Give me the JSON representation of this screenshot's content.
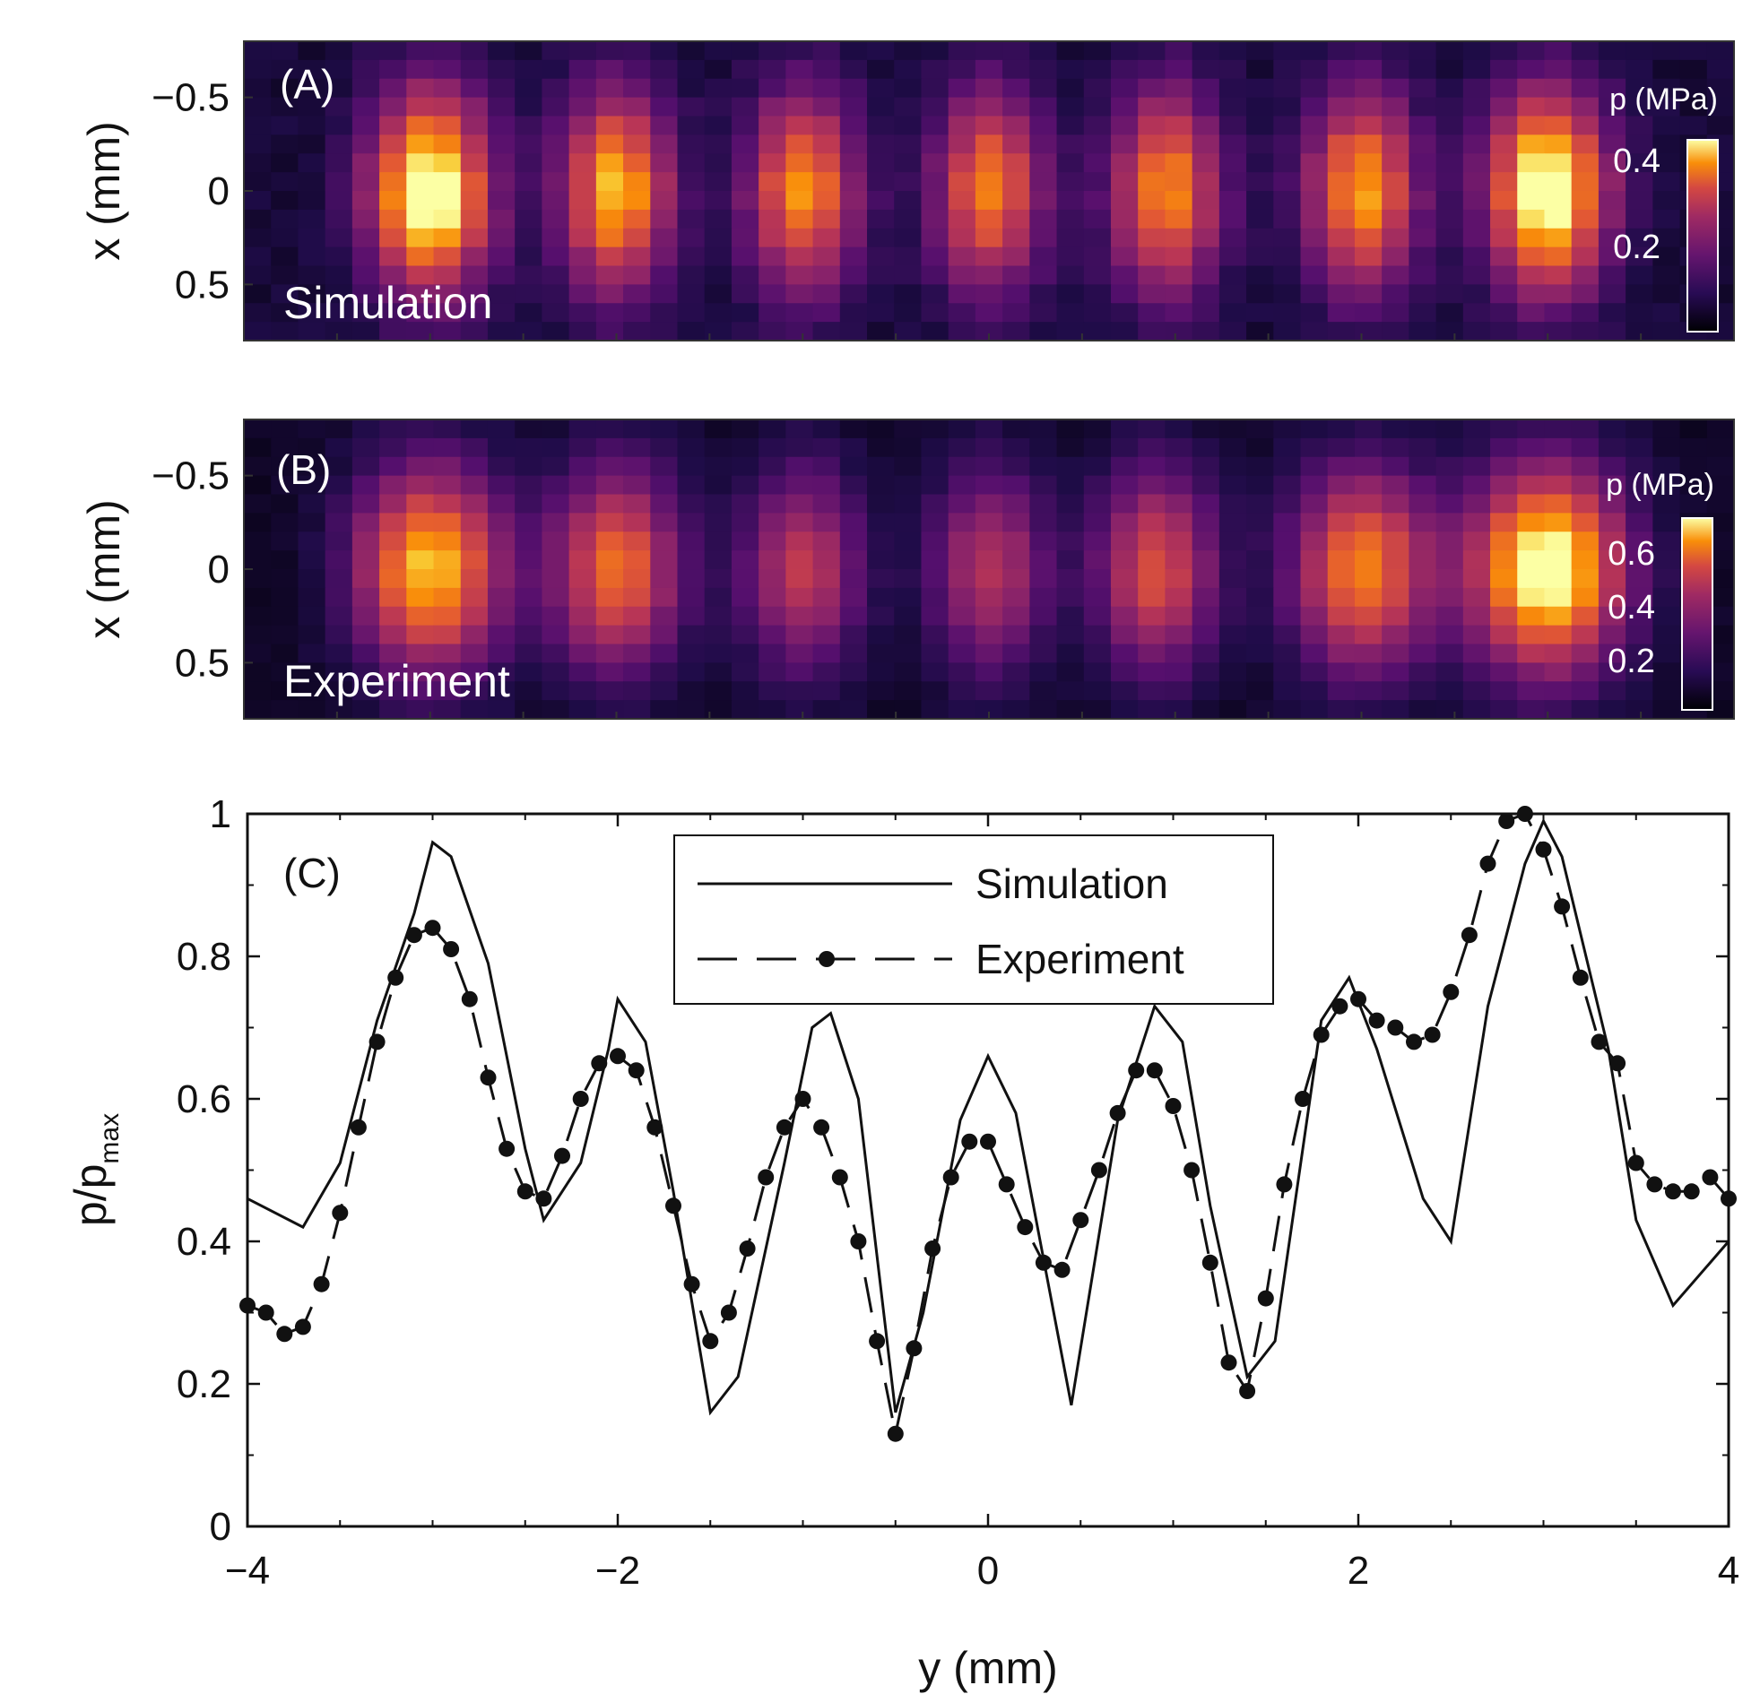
{
  "chart_data": [
    {
      "type": "heatmap",
      "panel_label": "(A)",
      "overlay_label": "Simulation",
      "ylabel": "x (mm)",
      "y_ticks": [
        "−0.5",
        "0",
        "0.5"
      ],
      "xlim": [
        -4,
        4
      ],
      "ylim": [
        -0.8,
        0.8
      ],
      "colorbar": {
        "title": "p (MPa)",
        "ticks": [
          "0.4",
          "0.2"
        ],
        "range": [
          0,
          0.45
        ]
      },
      "peaks": [
        {
          "y": -3.0,
          "amp": 0.44,
          "width": 0.33
        },
        {
          "y": -2.0,
          "amp": 0.36,
          "width": 0.3
        },
        {
          "y": -1.0,
          "amp": 0.33,
          "width": 0.3
        },
        {
          "y": 0.0,
          "amp": 0.31,
          "width": 0.3
        },
        {
          "y": 0.95,
          "amp": 0.33,
          "width": 0.3
        },
        {
          "y": 2.0,
          "amp": 0.34,
          "width": 0.3
        },
        {
          "y": 3.0,
          "amp": 0.44,
          "width": 0.33
        }
      ]
    },
    {
      "type": "heatmap",
      "panel_label": "(B)",
      "overlay_label": "Experiment",
      "ylabel": "x (mm)",
      "y_ticks": [
        "−0.5",
        "0",
        "0.5"
      ],
      "xlim": [
        -4,
        4
      ],
      "ylim": [
        -0.8,
        0.8
      ],
      "colorbar": {
        "title": "p (MPa)",
        "ticks": [
          "0.6",
          "0.4",
          "0.2"
        ],
        "range": [
          0,
          0.68
        ]
      },
      "peaks": [
        {
          "y": -3.0,
          "amp": 0.58,
          "width": 0.4
        },
        {
          "y": -2.0,
          "amp": 0.47,
          "width": 0.35
        },
        {
          "y": -1.0,
          "amp": 0.36,
          "width": 0.32
        },
        {
          "y": 0.0,
          "amp": 0.34,
          "width": 0.32
        },
        {
          "y": 0.9,
          "amp": 0.42,
          "width": 0.32
        },
        {
          "y": 2.0,
          "amp": 0.5,
          "width": 0.38
        },
        {
          "y": 3.0,
          "amp": 0.68,
          "width": 0.42
        }
      ]
    },
    {
      "type": "line",
      "panel_label": "(C)",
      "xlabel": "y (mm)",
      "ylabel": "p/p",
      "ylabel_subscript": "max",
      "xlim": [
        -4,
        4
      ],
      "ylim": [
        0,
        1
      ],
      "x_ticks": [
        "−4",
        "−2",
        "0",
        "2",
        "4"
      ],
      "y_ticks": [
        "0",
        "0.2",
        "0.4",
        "0.6",
        "0.8",
        "1"
      ],
      "legend": {
        "position": "top-center",
        "entries": [
          "Simulation",
          "Experiment"
        ]
      },
      "series": [
        {
          "name": "Simulation",
          "style": "solid",
          "x": [
            -4.0,
            -3.7,
            -3.5,
            -3.3,
            -3.1,
            -3.0,
            -2.9,
            -2.7,
            -2.5,
            -2.4,
            -2.2,
            -2.05,
            -2.0,
            -1.85,
            -1.7,
            -1.5,
            -1.35,
            -1.1,
            -0.95,
            -0.85,
            -0.7,
            -0.5,
            -0.35,
            -0.15,
            0.0,
            0.15,
            0.45,
            0.7,
            0.9,
            1.05,
            1.2,
            1.4,
            1.55,
            1.8,
            1.95,
            2.1,
            2.35,
            2.5,
            2.7,
            2.9,
            3.0,
            3.1,
            3.35,
            3.5,
            3.7,
            4.0
          ],
          "y": [
            0.46,
            0.42,
            0.51,
            0.71,
            0.86,
            0.96,
            0.94,
            0.79,
            0.53,
            0.43,
            0.51,
            0.67,
            0.74,
            0.68,
            0.47,
            0.16,
            0.21,
            0.51,
            0.7,
            0.72,
            0.6,
            0.16,
            0.3,
            0.57,
            0.66,
            0.58,
            0.17,
            0.57,
            0.73,
            0.68,
            0.45,
            0.21,
            0.26,
            0.71,
            0.77,
            0.67,
            0.46,
            0.4,
            0.73,
            0.93,
            0.99,
            0.94,
            0.67,
            0.43,
            0.31,
            0.4
          ]
        },
        {
          "name": "Experiment",
          "style": "dashed-markers",
          "x": [
            -4.0,
            -3.9,
            -3.8,
            -3.7,
            -3.6,
            -3.5,
            -3.4,
            -3.3,
            -3.2,
            -3.1,
            -3.0,
            -2.9,
            -2.8,
            -2.7,
            -2.6,
            -2.5,
            -2.4,
            -2.3,
            -2.2,
            -2.1,
            -2.0,
            -1.9,
            -1.8,
            -1.7,
            -1.6,
            -1.5,
            -1.4,
            -1.3,
            -1.2,
            -1.1,
            -1.0,
            -0.9,
            -0.8,
            -0.7,
            -0.6,
            -0.5,
            -0.4,
            -0.3,
            -0.2,
            -0.1,
            0.0,
            0.1,
            0.2,
            0.3,
            0.4,
            0.5,
            0.6,
            0.7,
            0.8,
            0.9,
            1.0,
            1.1,
            1.2,
            1.3,
            1.4,
            1.5,
            1.6,
            1.7,
            1.8,
            1.9,
            2.0,
            2.1,
            2.2,
            2.3,
            2.4,
            2.5,
            2.6,
            2.7,
            2.8,
            2.9,
            3.0,
            3.1,
            3.2,
            3.3,
            3.4,
            3.5,
            3.6,
            3.7,
            3.8,
            3.9,
            4.0
          ],
          "y": [
            0.31,
            0.3,
            0.27,
            0.28,
            0.34,
            0.44,
            0.56,
            0.68,
            0.77,
            0.83,
            0.84,
            0.81,
            0.74,
            0.63,
            0.53,
            0.47,
            0.46,
            0.52,
            0.6,
            0.65,
            0.66,
            0.64,
            0.56,
            0.45,
            0.34,
            0.26,
            0.3,
            0.39,
            0.49,
            0.56,
            0.6,
            0.56,
            0.49,
            0.4,
            0.26,
            0.13,
            0.25,
            0.39,
            0.49,
            0.54,
            0.54,
            0.48,
            0.42,
            0.37,
            0.36,
            0.43,
            0.5,
            0.58,
            0.64,
            0.64,
            0.59,
            0.5,
            0.37,
            0.23,
            0.19,
            0.32,
            0.48,
            0.6,
            0.69,
            0.73,
            0.74,
            0.71,
            0.7,
            0.68,
            0.69,
            0.75,
            0.83,
            0.93,
            0.99,
            1.0,
            0.95,
            0.87,
            0.77,
            0.68,
            0.65,
            0.51,
            0.48,
            0.47,
            0.47,
            0.49,
            0.46
          ]
        }
      ]
    }
  ]
}
